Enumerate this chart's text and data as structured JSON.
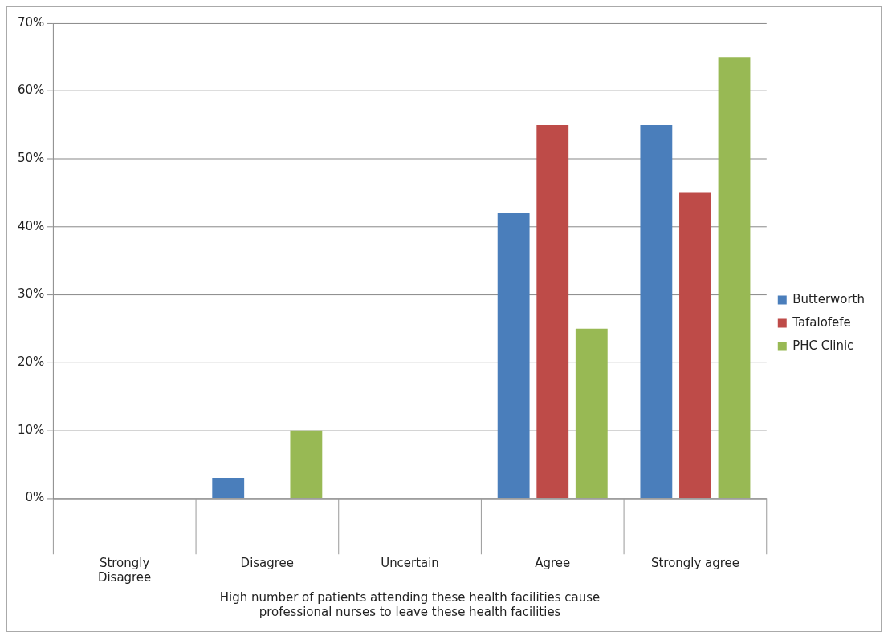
{
  "chart_data": {
    "type": "bar",
    "xlabel": "High number of patients attending these health facilities cause professional nurses to leave these health facilities",
    "categories": [
      "Strongly Disagree",
      "Disagree",
      "Uncertain",
      "Agree",
      "Strongly agree"
    ],
    "series": [
      {
        "name": "Butterworth",
        "color": "#4a7ebb",
        "values": [
          0,
          3,
          0,
          42,
          55
        ]
      },
      {
        "name": "Tafalofefe",
        "color": "#be4b48",
        "values": [
          0,
          0,
          0,
          55,
          45
        ]
      },
      {
        "name": "PHC Clinic",
        "color": "#98b954",
        "values": [
          0,
          10,
          0,
          25,
          65
        ]
      }
    ],
    "ylim": [
      0,
      70
    ],
    "yticks": [
      {
        "value": 0,
        "label": "0%"
      },
      {
        "value": 10,
        "label": "10%"
      },
      {
        "value": 20,
        "label": "20%"
      },
      {
        "value": 30,
        "label": "30%"
      },
      {
        "value": 40,
        "label": "40%"
      },
      {
        "value": 50,
        "label": "50%"
      },
      {
        "value": 60,
        "label": "60%"
      },
      {
        "value": 70,
        "label": "70%"
      }
    ],
    "grid": "y",
    "legend": "right"
  }
}
